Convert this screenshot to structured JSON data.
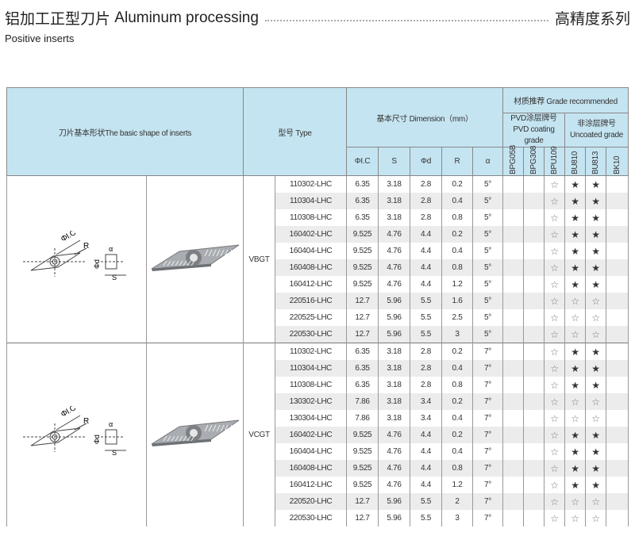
{
  "header": {
    "title_cn": "铝加工正型刀片",
    "title_en": "Aluminum processing",
    "series": "高精度系列",
    "subtitle": "Positive  inserts"
  },
  "table": {
    "shape_header": "刀片基本形状The basic shape of inserts",
    "type_header": "型号 Type",
    "dimension_header": "基本尺寸 Dimension（mm）",
    "grade_header": "材质推荐 Grade recommended",
    "pvd_cn": "PVD涂层牌号",
    "pvd_en": "PVD coating grade",
    "uncoated_cn": "非涂层牌号",
    "uncoated_en": "Uncoated grade",
    "dim_cols": [
      "ΦI.C",
      "S",
      "Φd",
      "R",
      "α"
    ],
    "grade_cols": [
      "BPG05B",
      "BPG308",
      "BPU109",
      "BU810",
      "BU813",
      "BK10"
    ],
    "legend": {
      "filled": "★",
      "outline": "☆"
    },
    "groups": [
      {
        "type": "VBGT",
        "alpha": "5°",
        "rows": [
          [
            "110302-LHC",
            "6.35",
            "3.18",
            "2.8",
            "0.2",
            [
              "",
              "",
              "☆",
              "★",
              "★",
              ""
            ]
          ],
          [
            "110304-LHC",
            "6.35",
            "3.18",
            "2.8",
            "0.4",
            [
              "",
              "",
              "☆",
              "★",
              "★",
              ""
            ]
          ],
          [
            "110308-LHC",
            "6.35",
            "3.18",
            "2.8",
            "0.8",
            [
              "",
              "",
              "☆",
              "★",
              "★",
              ""
            ]
          ],
          [
            "160402-LHC",
            "9.525",
            "4.76",
            "4.4",
            "0.2",
            [
              "",
              "",
              "☆",
              "★",
              "★",
              ""
            ]
          ],
          [
            "160404-LHC",
            "9.525",
            "4.76",
            "4.4",
            "0.4",
            [
              "",
              "",
              "☆",
              "★",
              "★",
              ""
            ]
          ],
          [
            "160408-LHC",
            "9.525",
            "4.76",
            "4.4",
            "0.8",
            [
              "",
              "",
              "☆",
              "★",
              "★",
              ""
            ]
          ],
          [
            "160412-LHC",
            "9.525",
            "4.76",
            "4.4",
            "1.2",
            [
              "",
              "",
              "☆",
              "★",
              "★",
              ""
            ]
          ],
          [
            "220516-LHC",
            "12.7",
            "5.96",
            "5.5",
            "1.6",
            [
              "",
              "",
              "☆",
              "☆",
              "☆",
              ""
            ]
          ],
          [
            "220525-LHC",
            "12.7",
            "5.96",
            "5.5",
            "2.5",
            [
              "",
              "",
              "☆",
              "☆",
              "☆",
              ""
            ]
          ],
          [
            "220530-LHC",
            "12.7",
            "5.96",
            "5.5",
            "3",
            [
              "",
              "",
              "☆",
              "☆",
              "☆",
              ""
            ]
          ]
        ]
      },
      {
        "type": "VCGT",
        "alpha": "7°",
        "rows": [
          [
            "110302-LHC",
            "6.35",
            "3.18",
            "2.8",
            "0.2",
            [
              "",
              "",
              "☆",
              "★",
              "★",
              ""
            ]
          ],
          [
            "110304-LHC",
            "6.35",
            "3.18",
            "2.8",
            "0.4",
            [
              "",
              "",
              "☆",
              "★",
              "★",
              ""
            ]
          ],
          [
            "110308-LHC",
            "6.35",
            "3.18",
            "2.8",
            "0.8",
            [
              "",
              "",
              "☆",
              "★",
              "★",
              ""
            ]
          ],
          [
            "130302-LHC",
            "7.86",
            "3.18",
            "3.4",
            "0.2",
            [
              "",
              "",
              "☆",
              "☆",
              "☆",
              ""
            ]
          ],
          [
            "130304-LHC",
            "7.86",
            "3.18",
            "3.4",
            "0.4",
            [
              "",
              "",
              "☆",
              "☆",
              "☆",
              ""
            ]
          ],
          [
            "160402-LHC",
            "9.525",
            "4.76",
            "4.4",
            "0.2",
            [
              "",
              "",
              "☆",
              "★",
              "★",
              ""
            ]
          ],
          [
            "160404-LHC",
            "9.525",
            "4.76",
            "4.4",
            "0.4",
            [
              "",
              "",
              "☆",
              "★",
              "★",
              ""
            ]
          ],
          [
            "160408-LHC",
            "9.525",
            "4.76",
            "4.4",
            "0.8",
            [
              "",
              "",
              "☆",
              "★",
              "★",
              ""
            ]
          ],
          [
            "160412-LHC",
            "9.525",
            "4.76",
            "4.4",
            "1.2",
            [
              "",
              "",
              "☆",
              "★",
              "★",
              ""
            ]
          ],
          [
            "220520-LHC",
            "12.7",
            "5.96",
            "5.5",
            "2",
            [
              "",
              "",
              "☆",
              "☆",
              "☆",
              ""
            ]
          ],
          [
            "220530-LHC",
            "12.7",
            "5.96",
            "5.5",
            "3",
            [
              "",
              "",
              "☆",
              "☆",
              "☆",
              ""
            ]
          ]
        ]
      }
    ]
  },
  "drawing_labels": {
    "ic": "ΦI.C",
    "r": "R",
    "d": "Φd",
    "s": "S",
    "alpha": "α"
  }
}
